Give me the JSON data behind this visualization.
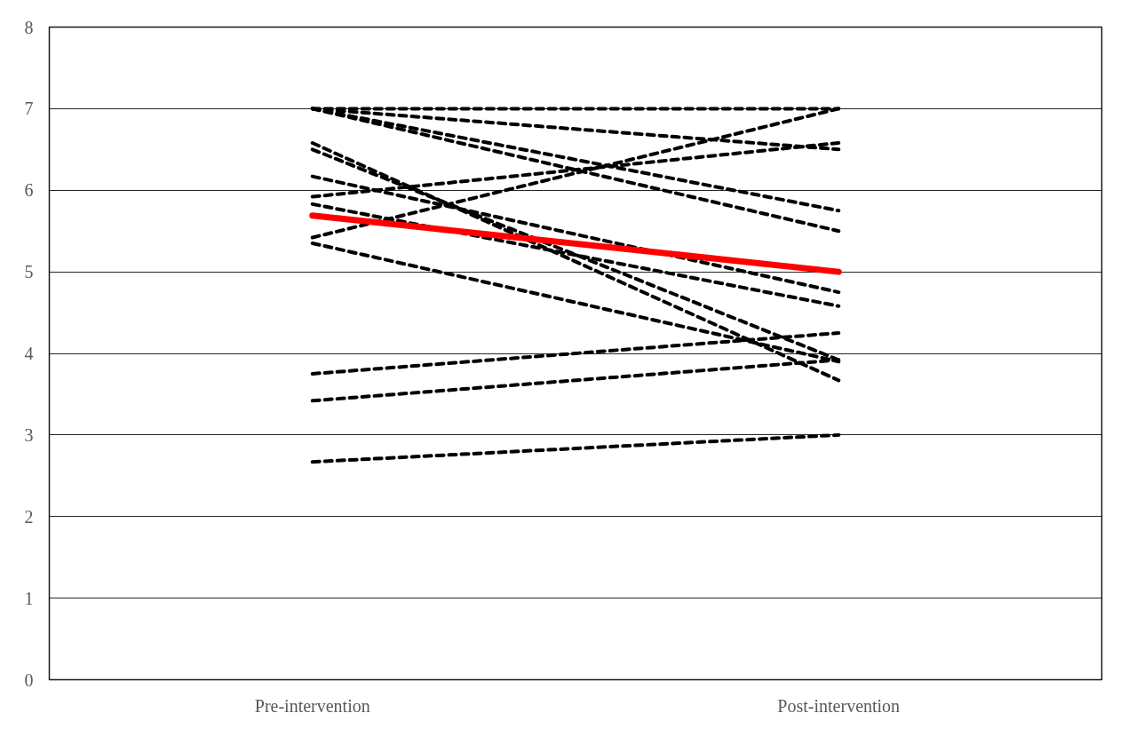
{
  "chart_data": {
    "type": "line",
    "categories": [
      "Pre-intervention",
      "Post-intervention"
    ],
    "ylim": [
      0,
      8
    ],
    "yticks": [
      0,
      1,
      2,
      3,
      4,
      5,
      6,
      7,
      8
    ],
    "grid": "y",
    "line_style": "dashed",
    "series": [
      {
        "color": "#000000",
        "values": [
          7.0,
          7.0
        ]
      },
      {
        "color": "#000000",
        "values": [
          7.0,
          6.5
        ]
      },
      {
        "color": "#000000",
        "values": [
          7.0,
          5.75
        ]
      },
      {
        "color": "#000000",
        "values": [
          7.0,
          5.5
        ]
      },
      {
        "color": "#000000",
        "values": [
          6.58,
          3.67
        ]
      },
      {
        "color": "#000000",
        "values": [
          6.5,
          3.92
        ]
      },
      {
        "color": "#000000",
        "values": [
          6.17,
          4.75
        ]
      },
      {
        "color": "#000000",
        "values": [
          5.83,
          4.58
        ]
      },
      {
        "color": "#000000",
        "values": [
          5.35,
          3.9
        ]
      },
      {
        "color": "#000000",
        "values": [
          5.92,
          6.58
        ]
      },
      {
        "color": "#000000",
        "values": [
          5.42,
          7.0
        ]
      },
      {
        "color": "#000000",
        "values": [
          3.75,
          4.25
        ]
      },
      {
        "color": "#000000",
        "values": [
          3.42,
          3.92
        ]
      },
      {
        "color": "#000000",
        "values": [
          2.67,
          3.0
        ]
      },
      {
        "color": "#ff0000",
        "values": [
          5.69,
          5.0
        ],
        "line_style": "solid"
      }
    ]
  }
}
